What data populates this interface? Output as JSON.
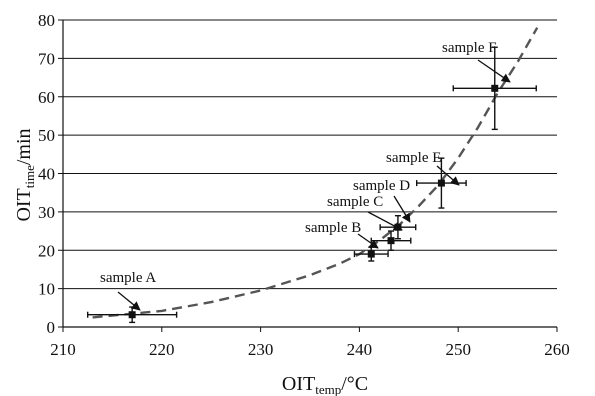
{
  "chart_data": {
    "type": "scatter",
    "title": "",
    "xlabel": {
      "main": "OIT",
      "sub": "temp",
      "rest": "/°C"
    },
    "ylabel": {
      "main": "OIT",
      "sub": "time",
      "rest": "/min"
    },
    "xlim": [
      210,
      260
    ],
    "ylim": [
      0,
      80
    ],
    "xticks": [
      210,
      220,
      230,
      240,
      250,
      260
    ],
    "yticks": [
      0,
      10,
      20,
      30,
      40,
      50,
      60,
      70,
      80
    ],
    "grid": "horizontal",
    "points": [
      {
        "label": "sample A",
        "x": 217,
        "y": 3.2,
        "x_err": 4.5,
        "y_err": 2.0
      },
      {
        "label": "sample B",
        "x": 241.2,
        "y": 19.0,
        "x_err": 1.7,
        "y_err": 1.8
      },
      {
        "label": "sample C",
        "x": 243.2,
        "y": 22.5,
        "x_err": 2.0,
        "y_err": 2.5
      },
      {
        "label": "sample D",
        "x": 243.9,
        "y": 26.0,
        "x_err": 1.8,
        "y_err": 3.0
      },
      {
        "label": "sample E",
        "x": 248.3,
        "y": 37.5,
        "x_err": 2.5,
        "y_err": 6.5
      },
      {
        "label": "sample F",
        "x": 253.7,
        "y": 62.2,
        "x_err": 4.2,
        "y_err": 10.7
      }
    ],
    "trend": {
      "style": "dashed",
      "x": [
        213,
        220,
        225,
        230,
        235,
        238,
        240,
        242,
        244,
        246,
        248,
        250,
        252,
        254,
        256,
        258
      ],
      "y": [
        2.5,
        4.2,
        6.5,
        9.5,
        13.5,
        16.5,
        19.0,
        22.5,
        26.5,
        31.5,
        37.0,
        44.0,
        52.0,
        61.0,
        69.0,
        78.0
      ]
    },
    "colors": {
      "axis": "#111111",
      "grid": "#111111",
      "points": "#111111",
      "trend": "#555555"
    }
  }
}
